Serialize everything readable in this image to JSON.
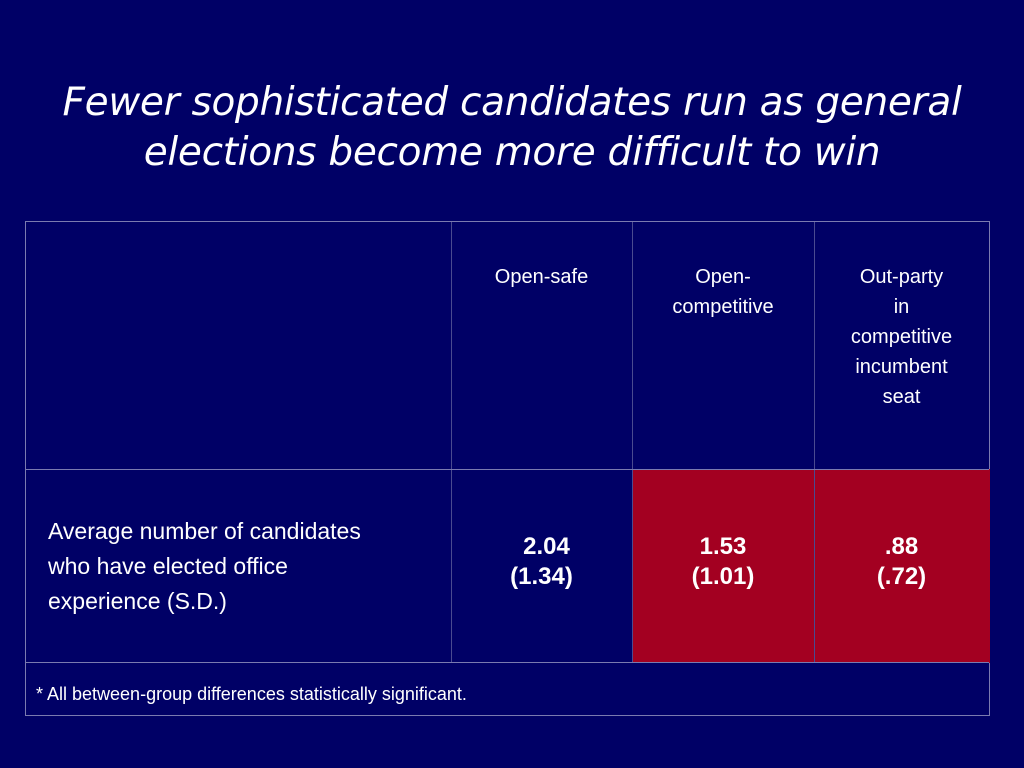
{
  "title": {
    "line1": "Fewer sophisticated candidates run as general",
    "line2": "elections become more difficult to win"
  },
  "table": {
    "columns": [
      {
        "lines": [
          "Open-safe"
        ]
      },
      {
        "lines": [
          "Open-",
          "competitive"
        ]
      },
      {
        "lines": [
          "Out-party",
          "in",
          "competitive",
          "incumbent",
          "seat"
        ]
      }
    ],
    "row_label": {
      "lines": [
        "Average number of candidates",
        "who have elected office",
        "experience (S.D.)"
      ]
    },
    "values": [
      {
        "mean": "2.04",
        "sd": "(1.34)",
        "highlighted": false
      },
      {
        "mean": "1.53",
        "sd": "(1.01)",
        "highlighted": true
      },
      {
        "mean": ".88",
        "sd": "(.72)",
        "highlighted": true
      }
    ],
    "footnote": "* All between-group differences statistically significant."
  },
  "colors": {
    "background": "#000066",
    "highlight": "#a30021",
    "text": "#ffffff"
  }
}
